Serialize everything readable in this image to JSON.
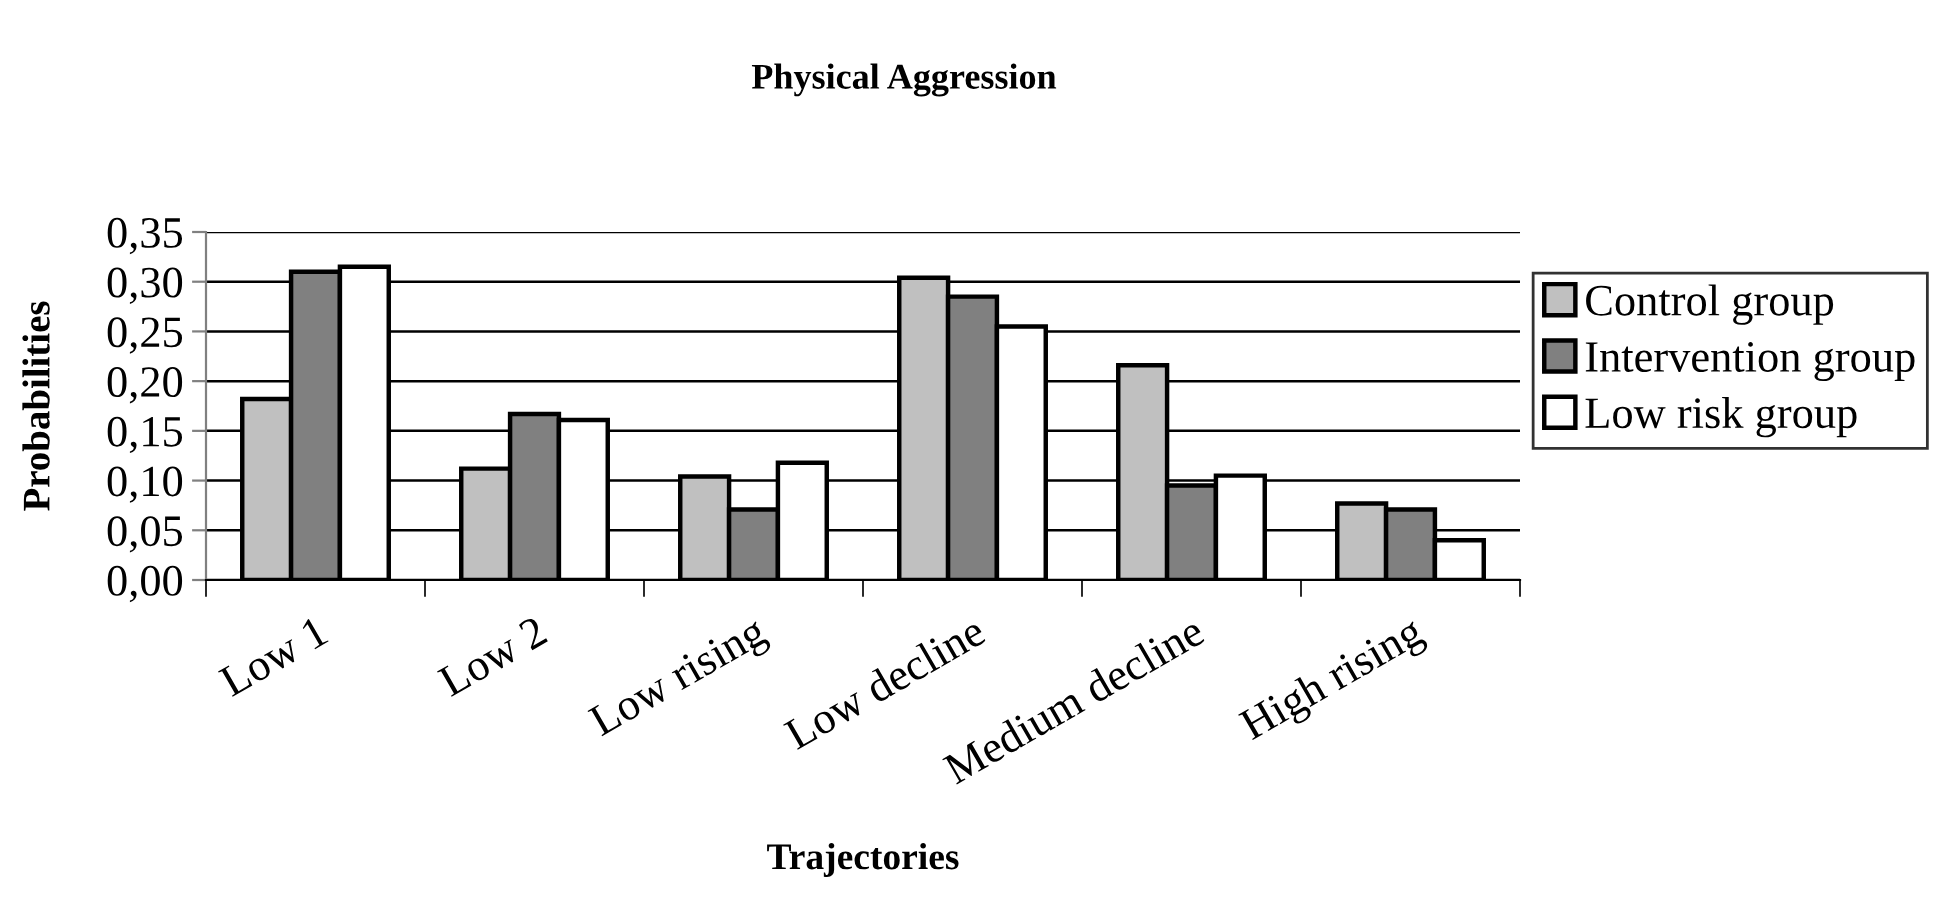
{
  "chart_data": {
    "type": "bar",
    "title": "Physical Aggression",
    "xlabel": "Trajectories",
    "ylabel": "Probabilities",
    "categories": [
      "Low 1",
      "Low 2",
      "Low rising",
      "Low decline",
      "Medium decline",
      "High rising"
    ],
    "series": [
      {
        "name": "Control group",
        "color": "#c0c0c0",
        "values": [
          0.182,
          0.112,
          0.104,
          0.304,
          0.216,
          0.077
        ]
      },
      {
        "name": "Intervention group",
        "color": "#808080",
        "values": [
          0.31,
          0.167,
          0.071,
          0.285,
          0.095,
          0.071
        ]
      },
      {
        "name": "Low risk group",
        "color": "#ffffff",
        "values": [
          0.315,
          0.161,
          0.118,
          0.255,
          0.105,
          0.04
        ]
      }
    ],
    "ylim": [
      0,
      0.35
    ],
    "yticks": [
      {
        "value": 0,
        "label": "0,00"
      },
      {
        "value": 0.05,
        "label": "0,05"
      },
      {
        "value": 0.1,
        "label": "0,10"
      },
      {
        "value": 0.15,
        "label": "0,15"
      },
      {
        "value": 0.2,
        "label": "0,20"
      },
      {
        "value": 0.25,
        "label": "0,25"
      },
      {
        "value": 0.3,
        "label": "0,30"
      },
      {
        "value": 0.35,
        "label": "0,35"
      }
    ],
    "grid": "y",
    "legend": "right"
  }
}
